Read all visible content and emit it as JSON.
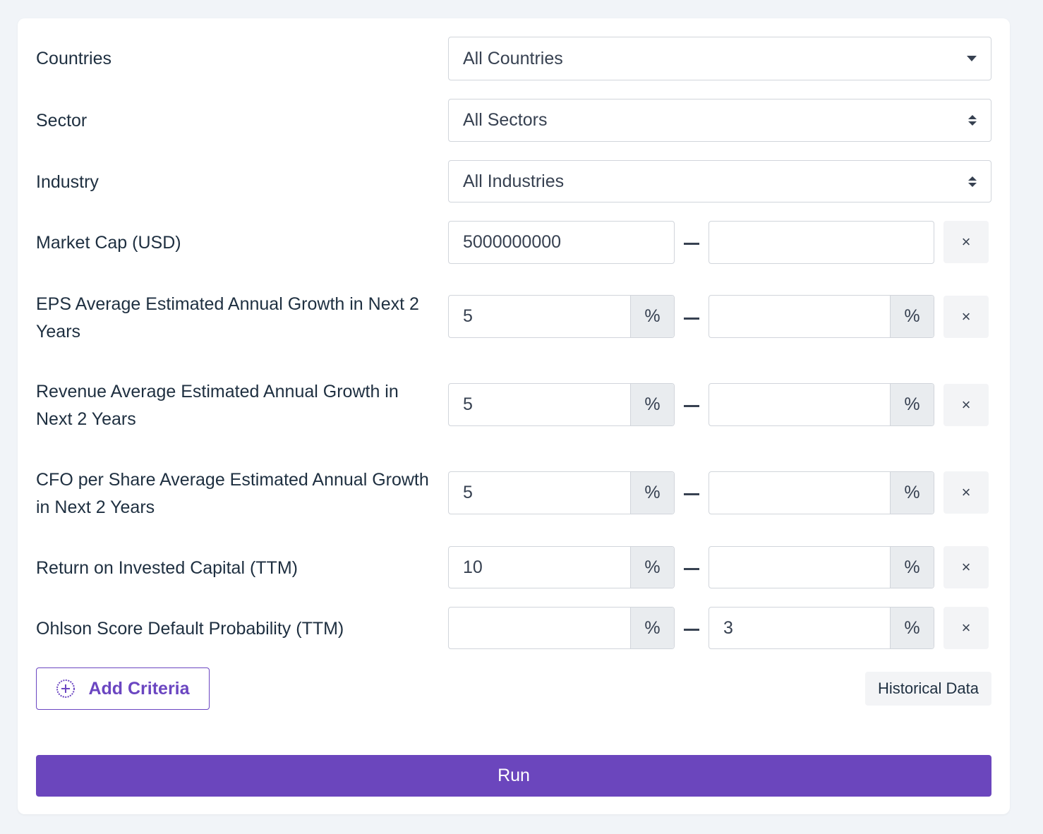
{
  "filters": {
    "countries": {
      "label": "Countries",
      "value": "All Countries"
    },
    "sector": {
      "label": "Sector",
      "value": "All Sectors"
    },
    "industry": {
      "label": "Industry",
      "value": "All Industries"
    }
  },
  "ranges": [
    {
      "label": "Market Cap (USD)",
      "min": "5000000000",
      "max": "",
      "unit": ""
    },
    {
      "label": "EPS Average Estimated Annual Growth in Next 2 Years",
      "min": "5",
      "max": "",
      "unit": "%"
    },
    {
      "label": "Revenue Average Estimated Annual Growth in Next 2 Years",
      "min": "5",
      "max": "",
      "unit": "%"
    },
    {
      "label": "CFO per Share Average Estimated Annual Growth in Next 2 Years",
      "min": "5",
      "max": "",
      "unit": "%"
    },
    {
      "label": "Return on Invested Capital (TTM)",
      "min": "10",
      "max": "",
      "unit": "%"
    },
    {
      "label": "Ohlson Score Default Probability (TTM)",
      "min": "",
      "max": "3",
      "unit": "%"
    }
  ],
  "remove_symbol": "×",
  "actions": {
    "add_criteria": "Add Criteria",
    "historical_data": "Historical Data",
    "run": "Run"
  },
  "colors": {
    "accent": "#6b46bd",
    "background": "#f1f4f8",
    "addon_bg": "#e9ecef"
  },
  "icons": {
    "add": "plus-circle-icon",
    "remove": "close-icon",
    "dropdown": "caret-down-icon",
    "select": "up-down-arrows-icon"
  }
}
